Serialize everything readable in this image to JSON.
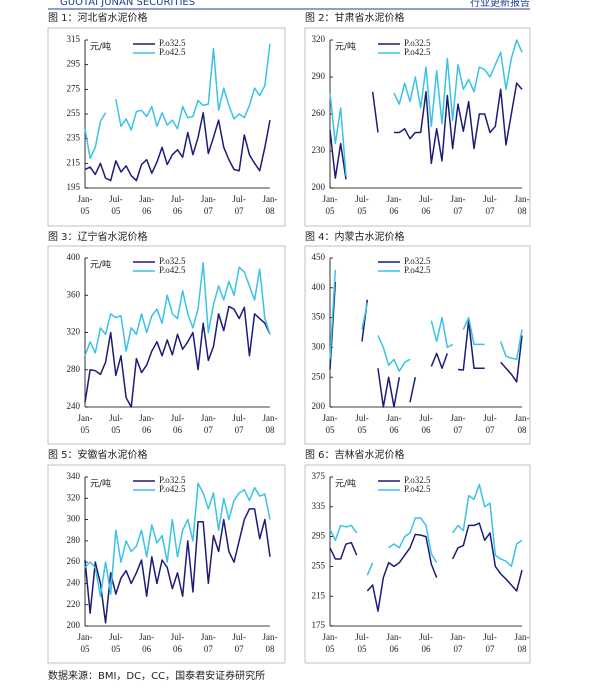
{
  "header": {
    "logo_text": "GUOTAI JUNAN SECURITIES",
    "report_type": "行业更新报告"
  },
  "source": "数据来源：BMI，DC，CC，国泰君安证券研究所",
  "chart_data": [
    {
      "type": "line",
      "title": "图 1：河北省水泥价格",
      "y_label": "元/吨",
      "categories": [
        "Jan-05",
        null,
        null,
        null,
        null,
        null,
        "Jul-05",
        null,
        null,
        null,
        null,
        null,
        "Jan-06",
        null,
        null,
        null,
        null,
        null,
        "Jul-06",
        null,
        null,
        null,
        null,
        null,
        "Jan-07",
        null,
        null,
        null,
        null,
        null,
        "Jul-07",
        null,
        null,
        null,
        null,
        null,
        "Jan-08"
      ],
      "ylim": [
        195,
        315
      ],
      "yticks": [
        195,
        215,
        235,
        255,
        275,
        295,
        315
      ],
      "series": [
        {
          "name": "P.o32.5",
          "color": "#1c1c78",
          "values": [
            210,
            212,
            206,
            215,
            203,
            201,
            217,
            208,
            213,
            205,
            201,
            214,
            218,
            207,
            216,
            228,
            214,
            222,
            226,
            220,
            240,
            222,
            236,
            256,
            223,
            236,
            250,
            228,
            218,
            210,
            209,
            238,
            222,
            215,
            209,
            228,
            250
          ]
        },
        {
          "name": "P.o42.5",
          "color": "#39c3e6",
          "values": [
            243,
            219,
            228,
            249,
            256,
            null,
            267,
            245,
            251,
            242,
            257,
            258,
            253,
            261,
            245,
            256,
            246,
            250,
            243,
            261,
            252,
            253,
            266,
            262,
            263,
            308,
            258,
            276,
            262,
            251,
            255,
            252,
            262,
            276,
            270,
            278,
            312
          ]
        }
      ]
    },
    {
      "type": "line",
      "title": "图 2：甘肃省水泥价格",
      "y_label": "元/吨",
      "categories": [
        "Jan-05",
        null,
        null,
        null,
        null,
        null,
        "Jul-05",
        null,
        null,
        null,
        null,
        null,
        "Jan-06",
        null,
        null,
        null,
        null,
        null,
        "Jul-06",
        null,
        null,
        null,
        null,
        null,
        "Jan-07",
        null,
        null,
        null,
        null,
        null,
        "Jul-07",
        null,
        null,
        null,
        null,
        null,
        "Jan-08"
      ],
      "ylim": [
        200,
        320
      ],
      "yticks": [
        200,
        230,
        260,
        290,
        320
      ],
      "series": [
        {
          "name": "P.o32.5",
          "color": "#1c1c78",
          "values": [
            247,
            208,
            236,
            207,
            null,
            null,
            null,
            null,
            278,
            245,
            null,
            null,
            245,
            245,
            248,
            240,
            245,
            245,
            278,
            220,
            248,
            222,
            275,
            232,
            268,
            246,
            270,
            232,
            260,
            260,
            245,
            250,
            280,
            235,
            260,
            285,
            280
          ]
        },
        {
          "name": "P.o42.5",
          "color": "#39c3e6",
          "values": [
            277,
            236,
            265,
            210,
            null,
            null,
            null,
            null,
            null,
            null,
            null,
            null,
            277,
            268,
            285,
            270,
            290,
            265,
            298,
            250,
            295,
            252,
            305,
            255,
            300,
            280,
            288,
            278,
            298,
            296,
            290,
            300,
            310,
            280,
            305,
            320,
            310
          ]
        }
      ]
    },
    {
      "type": "line",
      "title": "图 3：辽宁省水泥价格",
      "y_label": "元/吨",
      "categories": [
        "Jan-05",
        null,
        null,
        null,
        null,
        null,
        "Jul-05",
        null,
        null,
        null,
        null,
        null,
        "Jan-06",
        null,
        null,
        null,
        null,
        null,
        "Jul-06",
        null,
        null,
        null,
        null,
        null,
        "Jan-07",
        null,
        null,
        null,
        null,
        null,
        "Jul-07",
        null,
        null,
        null,
        null,
        null,
        "Jan-08"
      ],
      "ylim": [
        240,
        400
      ],
      "yticks": [
        240,
        280,
        320,
        360,
        400
      ],
      "series": [
        {
          "name": "P.o32.5",
          "color": "#1c1c78",
          "values": [
            245,
            280,
            279,
            275,
            288,
            320,
            274,
            295,
            250,
            240,
            292,
            277,
            285,
            300,
            310,
            295,
            312,
            296,
            318,
            302,
            310,
            320,
            280,
            330,
            290,
            305,
            340,
            322,
            348,
            345,
            335,
            347,
            295,
            340,
            335,
            330,
            318
          ]
        },
        {
          "name": "P.o42.5",
          "color": "#39c3e6",
          "values": [
            295,
            310,
            298,
            325,
            318,
            340,
            336,
            338,
            300,
            325,
            318,
            340,
            320,
            338,
            345,
            330,
            360,
            340,
            335,
            365,
            340,
            325,
            345,
            395,
            320,
            350,
            370,
            355,
            375,
            360,
            390,
            385,
            370,
            355,
            388,
            335,
            318
          ]
        }
      ]
    },
    {
      "type": "line",
      "title": "图 4：内蒙古水泥价格",
      "categories": [
        "Jan-05",
        null,
        null,
        null,
        null,
        null,
        "Jul-05",
        null,
        null,
        null,
        null,
        null,
        "Jan-06",
        null,
        null,
        null,
        null,
        null,
        "Jul-06",
        null,
        null,
        null,
        null,
        null,
        "Jan-07",
        null,
        null,
        null,
        null,
        null,
        "Jul-07",
        null,
        null,
        null,
        null,
        null,
        "Jan-08"
      ],
      "ylim": [
        200,
        450
      ],
      "yticks": [
        200,
        250,
        300,
        350,
        400,
        450
      ],
      "series": [
        {
          "name": "P.o32.5",
          "color": "#1c1c78",
          "values": [
            263,
            410,
            null,
            null,
            null,
            null,
            310,
            380,
            null,
            265,
            200,
            250,
            200,
            250,
            null,
            208,
            250,
            null,
            null,
            268,
            290,
            265,
            290,
            null,
            263,
            262,
            345,
            265,
            265,
            265,
            null,
            null,
            275,
            265,
            255,
            242,
            320
          ]
        },
        {
          "name": "P.o42.5",
          "color": "#39c3e6",
          "values": [
            280,
            430,
            null,
            null,
            null,
            null,
            330,
            375,
            null,
            320,
            300,
            270,
            280,
            260,
            275,
            280,
            null,
            null,
            null,
            345,
            310,
            350,
            300,
            305,
            null,
            330,
            350,
            305,
            305,
            305,
            null,
            null,
            310,
            285,
            282,
            280,
            330
          ]
        }
      ]
    },
    {
      "type": "line",
      "title": "图 5：安徽省水泥价格",
      "y_label": "元/吨",
      "categories": [
        "Jan-05",
        null,
        null,
        null,
        null,
        null,
        "Jul-05",
        null,
        null,
        null,
        null,
        null,
        "Jan-06",
        null,
        null,
        null,
        null,
        null,
        "Jul-06",
        null,
        null,
        null,
        null,
        null,
        "Jan-07",
        null,
        null,
        null,
        null,
        null,
        "Jul-07",
        null,
        null,
        null,
        null,
        null,
        "Jan-08"
      ],
      "ylim": [
        200,
        340
      ],
      "yticks": [
        200,
        220,
        240,
        260,
        280,
        300,
        320,
        340
      ],
      "series": [
        {
          "name": "P.o32.5",
          "color": "#1c1c78",
          "values": [
            262,
            212,
            260,
            240,
            203,
            250,
            230,
            245,
            252,
            240,
            250,
            262,
            228,
            265,
            240,
            262,
            255,
            235,
            250,
            228,
            280,
            232,
            298,
            298,
            240,
            285,
            270,
            300,
            270,
            260,
            280,
            300,
            310,
            310,
            282,
            300,
            265
          ]
        },
        {
          "name": "P.o42.5",
          "color": "#39c3e6",
          "values": [
            255,
            260,
            255,
            228,
            260,
            230,
            290,
            260,
            280,
            270,
            275,
            290,
            265,
            295,
            278,
            285,
            260,
            300,
            265,
            290,
            300,
            280,
            334,
            325,
            310,
            325,
            290,
            320,
            300,
            318,
            325,
            328,
            318,
            330,
            322,
            324,
            300
          ]
        }
      ]
    },
    {
      "type": "line",
      "title": "图 6：吉林省水泥价格",
      "y_label": "元/吨",
      "categories": [
        "Jan-05",
        null,
        null,
        null,
        null,
        null,
        "Jul-05",
        null,
        null,
        null,
        null,
        null,
        "Jan-06",
        null,
        null,
        null,
        null,
        null,
        "Jul-06",
        null,
        null,
        null,
        null,
        null,
        "Jan-07",
        null,
        null,
        null,
        null,
        null,
        "Jul-07",
        null,
        null,
        null,
        null,
        null,
        "Jan-08"
      ],
      "ylim": [
        175,
        375
      ],
      "yticks": [
        175,
        215,
        255,
        295,
        335,
        375
      ],
      "series": [
        {
          "name": "P.o32.5",
          "color": "#1c1c78",
          "values": [
            280,
            265,
            265,
            285,
            287,
            270,
            null,
            222,
            230,
            195,
            240,
            260,
            255,
            260,
            270,
            280,
            298,
            297,
            295,
            258,
            240,
            null,
            null,
            265,
            280,
            283,
            310,
            310,
            313,
            290,
            300,
            255,
            245,
            238,
            230,
            222,
            250
          ]
        },
        {
          "name": "P.o42.5",
          "color": "#39c3e6",
          "values": [
            305,
            290,
            310,
            308,
            310,
            300,
            null,
            243,
            260,
            null,
            null,
            280,
            285,
            280,
            295,
            300,
            320,
            320,
            310,
            272,
            260,
            null,
            null,
            300,
            310,
            303,
            350,
            345,
            365,
            335,
            340,
            270,
            265,
            262,
            255,
            285,
            290
          ]
        }
      ]
    }
  ]
}
